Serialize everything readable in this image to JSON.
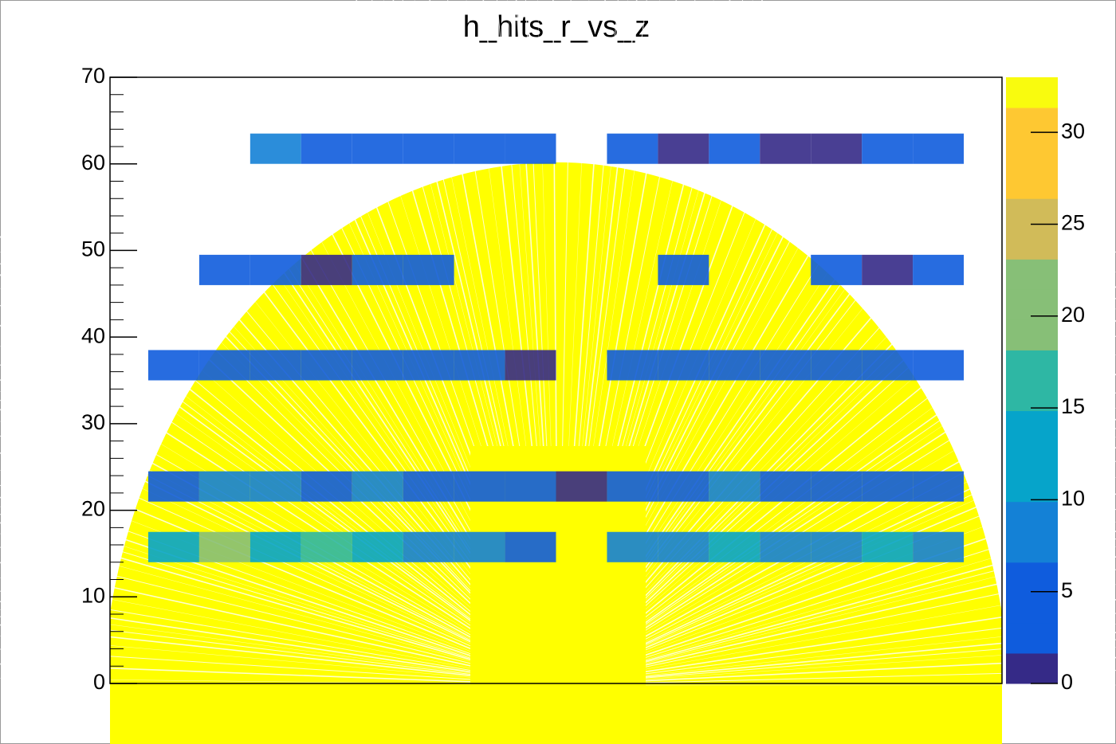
{
  "chart_data": {
    "type": "heatmap",
    "title": "h_hits_r_vs_z",
    "x_bins": [
      -32,
      -28,
      -24,
      -20,
      -16,
      -12,
      -8,
      -4,
      0,
      4,
      8,
      12,
      16,
      20,
      24,
      28,
      32
    ],
    "y_bands": [
      [
        14,
        17.5
      ],
      [
        21,
        24.5
      ],
      [
        35,
        38.5
      ],
      [
        46,
        49.5
      ],
      [
        60,
        63.5
      ]
    ],
    "z": [
      [
        12,
        22,
        14,
        16,
        11,
        9,
        8,
        6,
        null,
        7,
        10,
        14,
        9,
        10,
        12,
        8
      ],
      [
        6,
        9,
        8,
        5,
        7,
        4,
        5,
        3,
        2,
        4,
        6,
        7,
        5,
        6,
        4,
        5
      ],
      [
        4,
        5,
        3,
        4,
        3,
        3,
        4,
        2,
        null,
        3,
        4,
        5,
        4,
        3,
        4,
        4
      ],
      [
        null,
        5,
        3,
        2,
        3,
        4,
        null,
        null,
        null,
        null,
        3,
        null,
        null,
        3,
        1,
        5
      ],
      [
        null,
        null,
        7,
        6,
        5,
        6,
        4,
        3,
        null,
        3,
        2,
        3,
        2,
        1,
        6,
        5
      ]
    ],
    "xlim": [
      -35,
      35
    ],
    "ylim": [
      0,
      70
    ],
    "yticks": [
      0,
      10,
      20,
      30,
      40,
      50,
      60,
      70
    ],
    "zlim": [
      0,
      33
    ],
    "zticks": [
      0,
      5,
      10,
      15,
      20,
      25,
      30
    ],
    "palette": [
      "#352a87",
      "#0f5cdd",
      "#1481d6",
      "#06a4ca",
      "#2eb7a4",
      "#87bf77",
      "#d1bb59",
      "#fec832",
      "#f9fb0e"
    ]
  }
}
